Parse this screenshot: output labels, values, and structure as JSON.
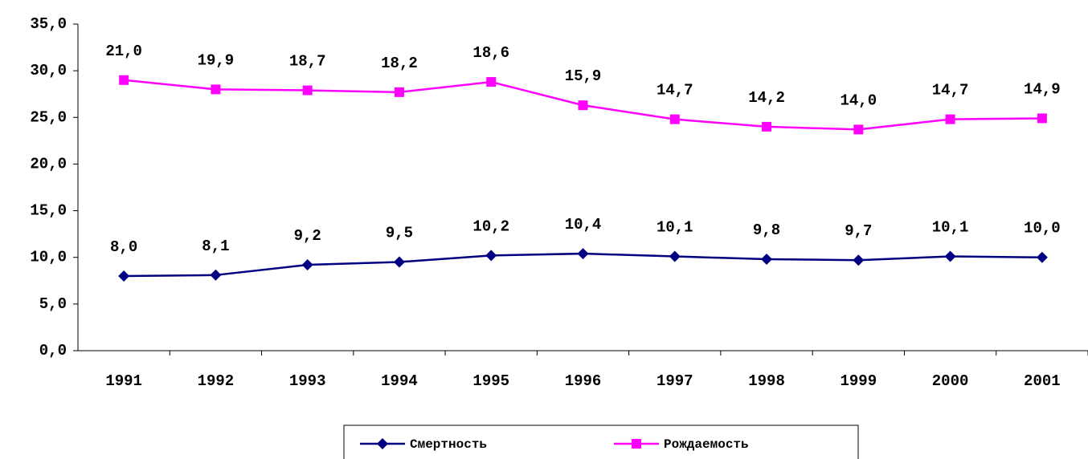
{
  "chart_data": {
    "type": "line",
    "stacked": true,
    "categories": [
      "1991",
      "1992",
      "1993",
      "1994",
      "1995",
      "1996",
      "1997",
      "1998",
      "1999",
      "2000",
      "2001"
    ],
    "series": [
      {
        "name": "Смертность",
        "color": "#000080",
        "marker": "diamond",
        "values": [
          8.0,
          8.1,
          9.2,
          9.5,
          10.2,
          10.4,
          10.1,
          9.8,
          9.7,
          10.1,
          10.0
        ],
        "value_labels": [
          "8,0",
          "8,1",
          "9,2",
          "9,5",
          "10,2",
          "10,4",
          "10,1",
          "9,8",
          "9,7",
          "10,1",
          "10,0"
        ]
      },
      {
        "name": "Рождаемость",
        "color": "#ff00ff",
        "marker": "square",
        "values": [
          21.0,
          19.9,
          18.7,
          18.2,
          18.6,
          15.9,
          14.7,
          14.2,
          14.0,
          14.7,
          14.9
        ],
        "value_labels": [
          "21,0",
          "19,9",
          "18,7",
          "18,2",
          "18,6",
          "15,9",
          "14,7",
          "14,2",
          "14,0",
          "14,7",
          "14,9"
        ]
      }
    ],
    "ylim": [
      0,
      35
    ],
    "yticks": [
      {
        "value": 0,
        "label": "0,0"
      },
      {
        "value": 5,
        "label": "5,0"
      },
      {
        "value": 10,
        "label": "10,0"
      },
      {
        "value": 15,
        "label": "15,0"
      },
      {
        "value": 20,
        "label": "20,0"
      },
      {
        "value": 25,
        "label": "25,0"
      },
      {
        "value": 30,
        "label": "30,0"
      },
      {
        "value": 35,
        "label": "35,0"
      }
    ],
    "legend": "bottom"
  }
}
